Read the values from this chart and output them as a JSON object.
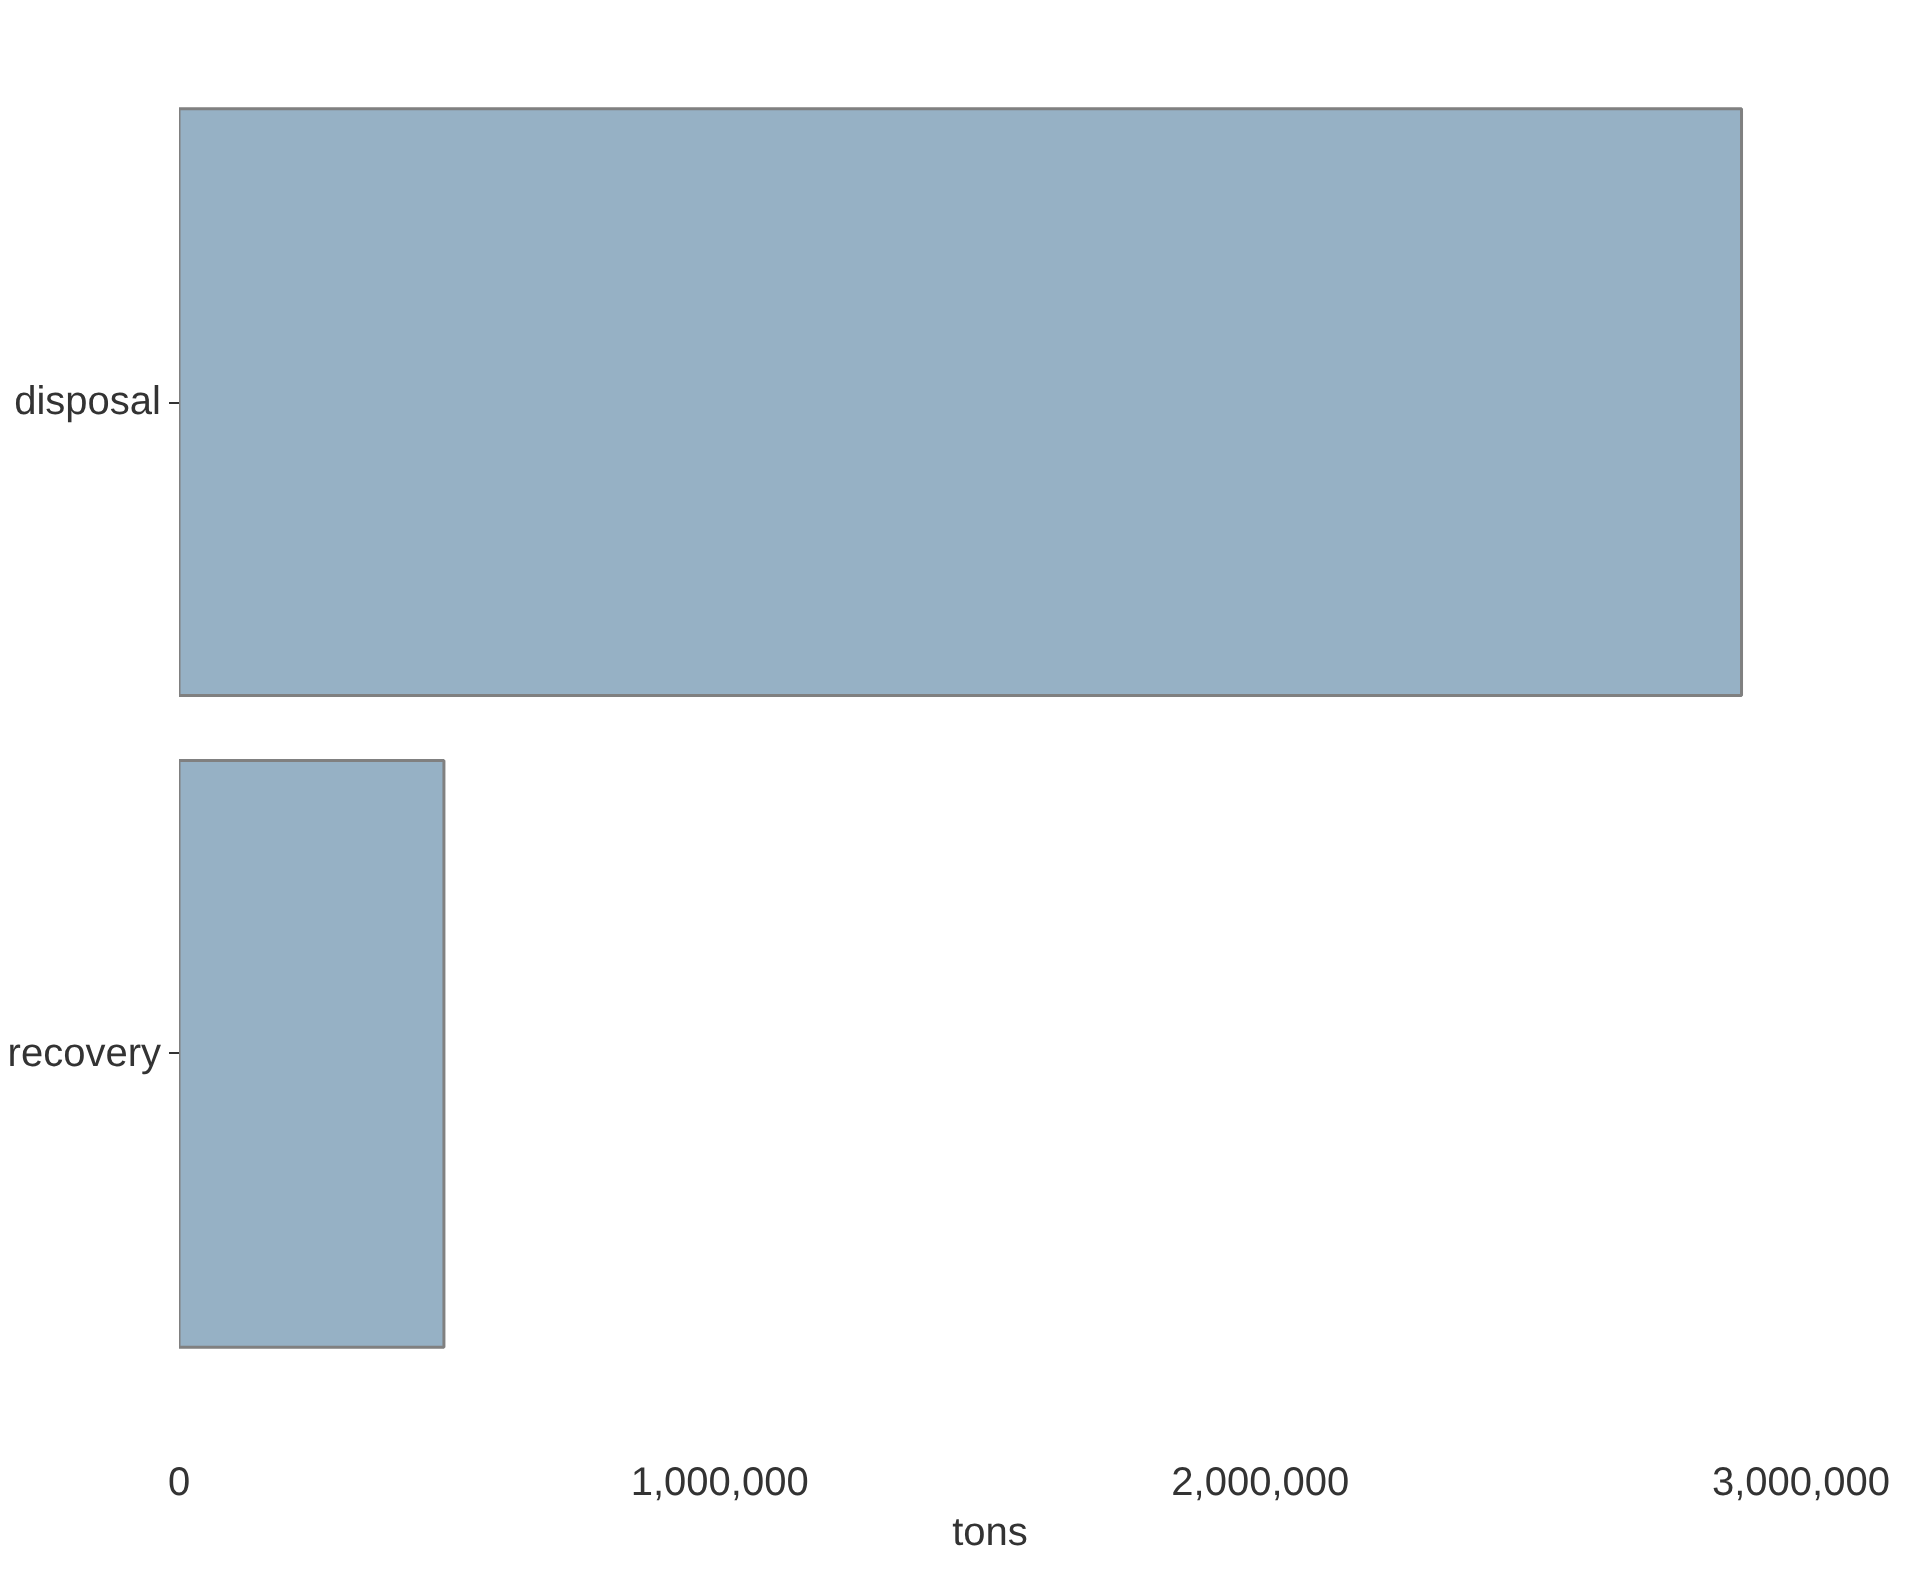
{
  "chart_data": {
    "type": "bar",
    "orientation": "horizontal",
    "xlabel": "tons",
    "categories": [
      "disposal",
      "recovery"
    ],
    "values": [
      2890000,
      490000
    ],
    "color": "#96b1c5",
    "xlim": [
      0,
      3000000
    ],
    "xticks": [
      {
        "value": 0,
        "label": "0"
      },
      {
        "value": 1000000,
        "label": "1,000,000"
      },
      {
        "value": 2000000,
        "label": "2,000,000"
      },
      {
        "value": 3000000,
        "label": "3,000,000"
      }
    ],
    "grid": false
  }
}
